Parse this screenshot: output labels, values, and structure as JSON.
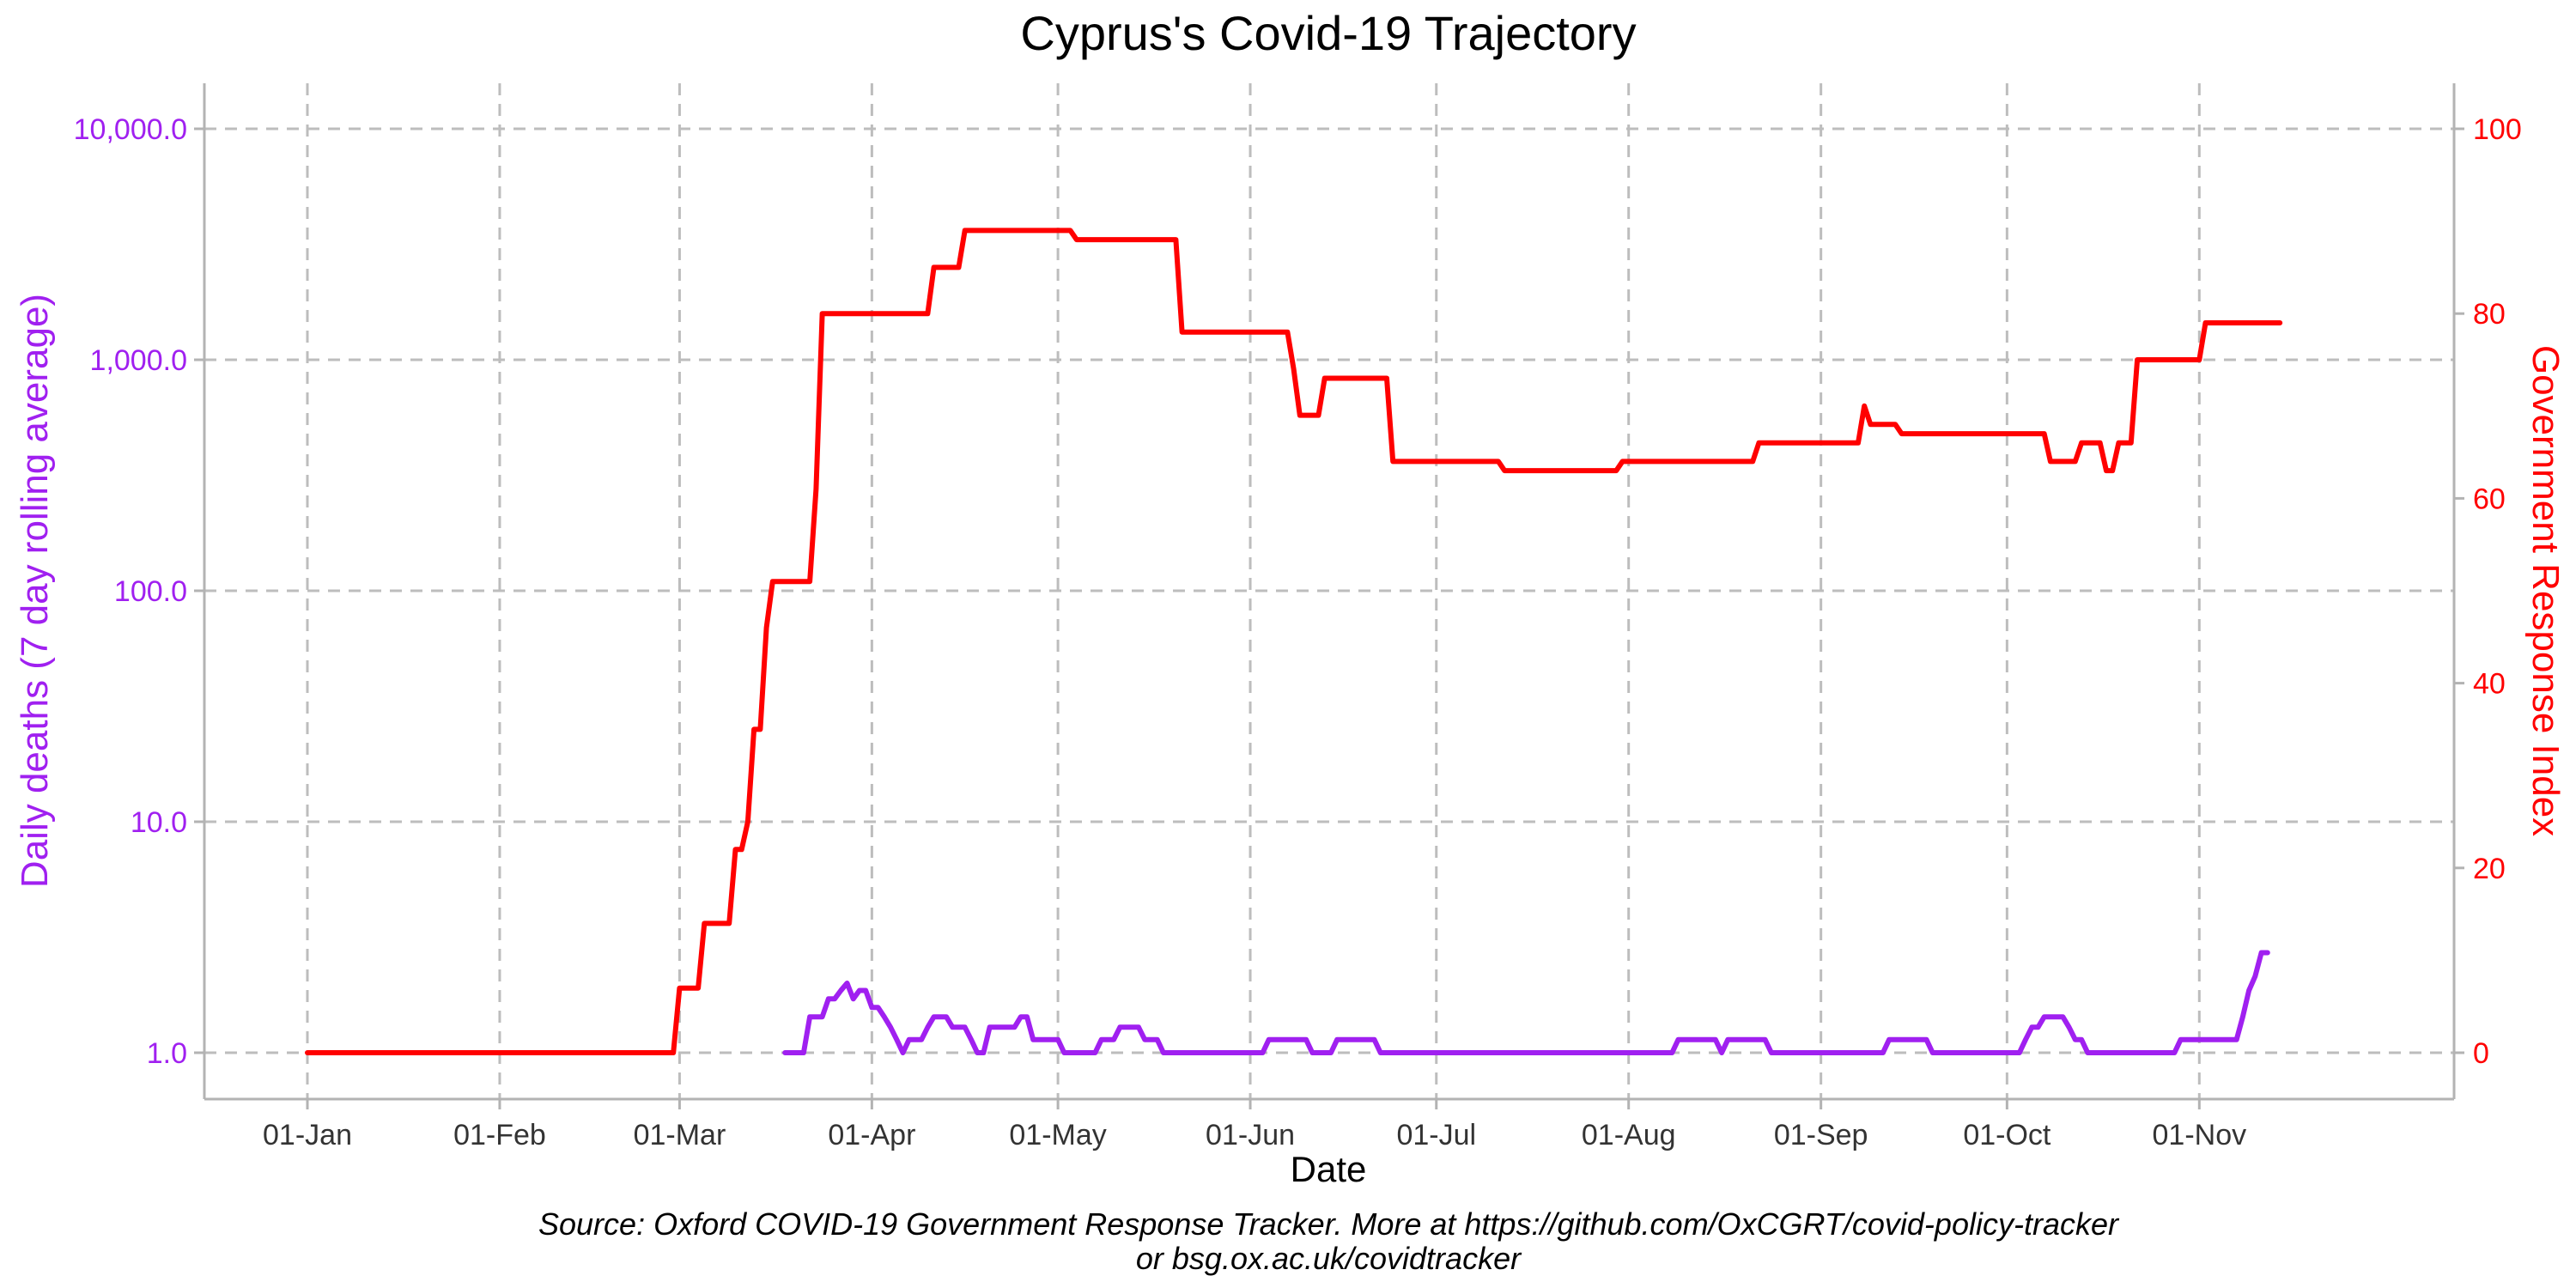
{
  "colors": {
    "deaths": "#a020f0",
    "gri": "#ff0000",
    "grid": "#bdbdbd",
    "axis": "#b3b3b3"
  },
  "chart_data": {
    "type": "line",
    "title": "Cyprus's Covid-19 Trajectory",
    "xlabel": "Date",
    "ylabel_left": "Daily deaths (7 day rolling average)",
    "ylabel_right": "Government Response Index",
    "y_left_scale": "log10",
    "y_left_range": [
      1,
      10000
    ],
    "y_right_range": [
      0,
      100
    ],
    "x_range_days": [
      0,
      332
    ],
    "x_ticks": [
      {
        "day": 0,
        "label": "01-Jan"
      },
      {
        "day": 31,
        "label": "01-Feb"
      },
      {
        "day": 60,
        "label": "01-Mar"
      },
      {
        "day": 91,
        "label": "01-Apr"
      },
      {
        "day": 121,
        "label": "01-May"
      },
      {
        "day": 152,
        "label": "01-Jun"
      },
      {
        "day": 182,
        "label": "01-Jul"
      },
      {
        "day": 213,
        "label": "01-Aug"
      },
      {
        "day": 244,
        "label": "01-Sep"
      },
      {
        "day": 274,
        "label": "01-Oct"
      },
      {
        "day": 305,
        "label": "01-Nov"
      }
    ],
    "y_left_ticks": [
      {
        "value": 1,
        "label": "1.0"
      },
      {
        "value": 10,
        "label": "10.0"
      },
      {
        "value": 100,
        "label": "100.0"
      },
      {
        "value": 1000,
        "label": "1,000.0"
      },
      {
        "value": 10000,
        "label": "10,000.0"
      }
    ],
    "y_right_ticks": [
      {
        "value": 0,
        "label": "0"
      },
      {
        "value": 20,
        "label": "20"
      },
      {
        "value": 40,
        "label": "40"
      },
      {
        "value": 60,
        "label": "60"
      },
      {
        "value": 80,
        "label": "80"
      },
      {
        "value": 100,
        "label": "100"
      }
    ],
    "series": [
      {
        "name": "Government Response Index",
        "axis": "right",
        "points": [
          [
            0,
            0
          ],
          [
            59,
            0
          ],
          [
            60,
            7
          ],
          [
            63,
            7
          ],
          [
            64,
            14
          ],
          [
            68,
            14
          ],
          [
            69,
            22
          ],
          [
            70,
            22
          ],
          [
            71,
            25
          ],
          [
            72,
            35
          ],
          [
            73,
            35
          ],
          [
            74,
            46
          ],
          [
            75,
            51
          ],
          [
            81,
            51
          ],
          [
            82,
            61
          ],
          [
            83,
            80
          ],
          [
            100,
            80
          ],
          [
            101,
            85
          ],
          [
            105,
            85
          ],
          [
            106,
            89
          ],
          [
            123,
            89
          ],
          [
            124,
            88
          ],
          [
            140,
            88
          ],
          [
            141,
            78
          ],
          [
            158,
            78
          ],
          [
            159,
            74
          ],
          [
            160,
            69
          ],
          [
            163,
            69
          ],
          [
            164,
            73
          ],
          [
            174,
            73
          ],
          [
            175,
            64
          ],
          [
            192,
            64
          ],
          [
            193,
            63
          ],
          [
            211,
            63
          ],
          [
            212,
            64
          ],
          [
            233,
            64
          ],
          [
            234,
            66
          ],
          [
            250,
            66
          ],
          [
            251,
            70
          ],
          [
            252,
            68
          ],
          [
            256,
            68
          ],
          [
            257,
            67
          ],
          [
            280,
            67
          ],
          [
            281,
            64
          ],
          [
            285,
            64
          ],
          [
            286,
            66
          ],
          [
            289,
            66
          ],
          [
            290,
            63
          ],
          [
            291,
            63
          ],
          [
            292,
            66
          ],
          [
            294,
            66
          ],
          [
            295,
            75
          ],
          [
            305,
            75
          ],
          [
            306,
            79
          ],
          [
            318,
            79
          ]
        ]
      },
      {
        "name": "Daily deaths (7 day rolling average)",
        "axis": "left",
        "points": [
          [
            77,
            1
          ],
          [
            80,
            1
          ],
          [
            81,
            1.43
          ],
          [
            83,
            1.43
          ],
          [
            84,
            1.71
          ],
          [
            85,
            1.71
          ],
          [
            86,
            1.86
          ],
          [
            87,
            2
          ],
          [
            88,
            1.71
          ],
          [
            89,
            1.86
          ],
          [
            90,
            1.86
          ],
          [
            91,
            1.57
          ],
          [
            92,
            1.57
          ],
          [
            93,
            1.43
          ],
          [
            94,
            1.29
          ],
          [
            95,
            1.14
          ],
          [
            96,
            1
          ],
          [
            97,
            1.14
          ],
          [
            99,
            1.14
          ],
          [
            100,
            1.29
          ],
          [
            101,
            1.43
          ],
          [
            103,
            1.43
          ],
          [
            104,
            1.29
          ],
          [
            106,
            1.29
          ],
          [
            107,
            1.14
          ],
          [
            108,
            1
          ],
          [
            109,
            1
          ],
          [
            110,
            1.29
          ],
          [
            114,
            1.29
          ],
          [
            115,
            1.43
          ],
          [
            116,
            1.43
          ],
          [
            117,
            1.14
          ],
          [
            121,
            1.14
          ],
          [
            122,
            1
          ],
          [
            127,
            1
          ],
          [
            128,
            1.14
          ],
          [
            130,
            1.14
          ],
          [
            131,
            1.29
          ],
          [
            134,
            1.29
          ],
          [
            135,
            1.14
          ],
          [
            137,
            1.14
          ],
          [
            138,
            1
          ],
          [
            154,
            1
          ],
          [
            155,
            1.14
          ],
          [
            161,
            1.14
          ],
          [
            162,
            1
          ],
          [
            165,
            1
          ],
          [
            166,
            1.14
          ],
          [
            172,
            1.14
          ],
          [
            173,
            1
          ],
          [
            220,
            1
          ],
          [
            221,
            1.14
          ],
          [
            227,
            1.14
          ],
          [
            228,
            1
          ],
          [
            229,
            1.14
          ],
          [
            235,
            1.14
          ],
          [
            236,
            1
          ],
          [
            254,
            1
          ],
          [
            255,
            1.14
          ],
          [
            261,
            1.14
          ],
          [
            262,
            1
          ],
          [
            276,
            1
          ],
          [
            277,
            1.14
          ],
          [
            278,
            1.29
          ],
          [
            279,
            1.29
          ],
          [
            280,
            1.43
          ],
          [
            283,
            1.43
          ],
          [
            284,
            1.29
          ],
          [
            285,
            1.14
          ],
          [
            286,
            1.14
          ],
          [
            287,
            1
          ],
          [
            301,
            1
          ],
          [
            302,
            1.14
          ],
          [
            311,
            1.14
          ],
          [
            312,
            1.43
          ],
          [
            313,
            1.86
          ],
          [
            314,
            2.14
          ],
          [
            315,
            2.71
          ],
          [
            316,
            2.71
          ]
        ]
      }
    ],
    "caption_line1": "Source: Oxford COVID-19 Government Response Tracker. More at https://github.com/OxCGRT/covid-policy-tracker",
    "caption_line2": "or bsg.ox.ac.uk/covidtracker"
  }
}
